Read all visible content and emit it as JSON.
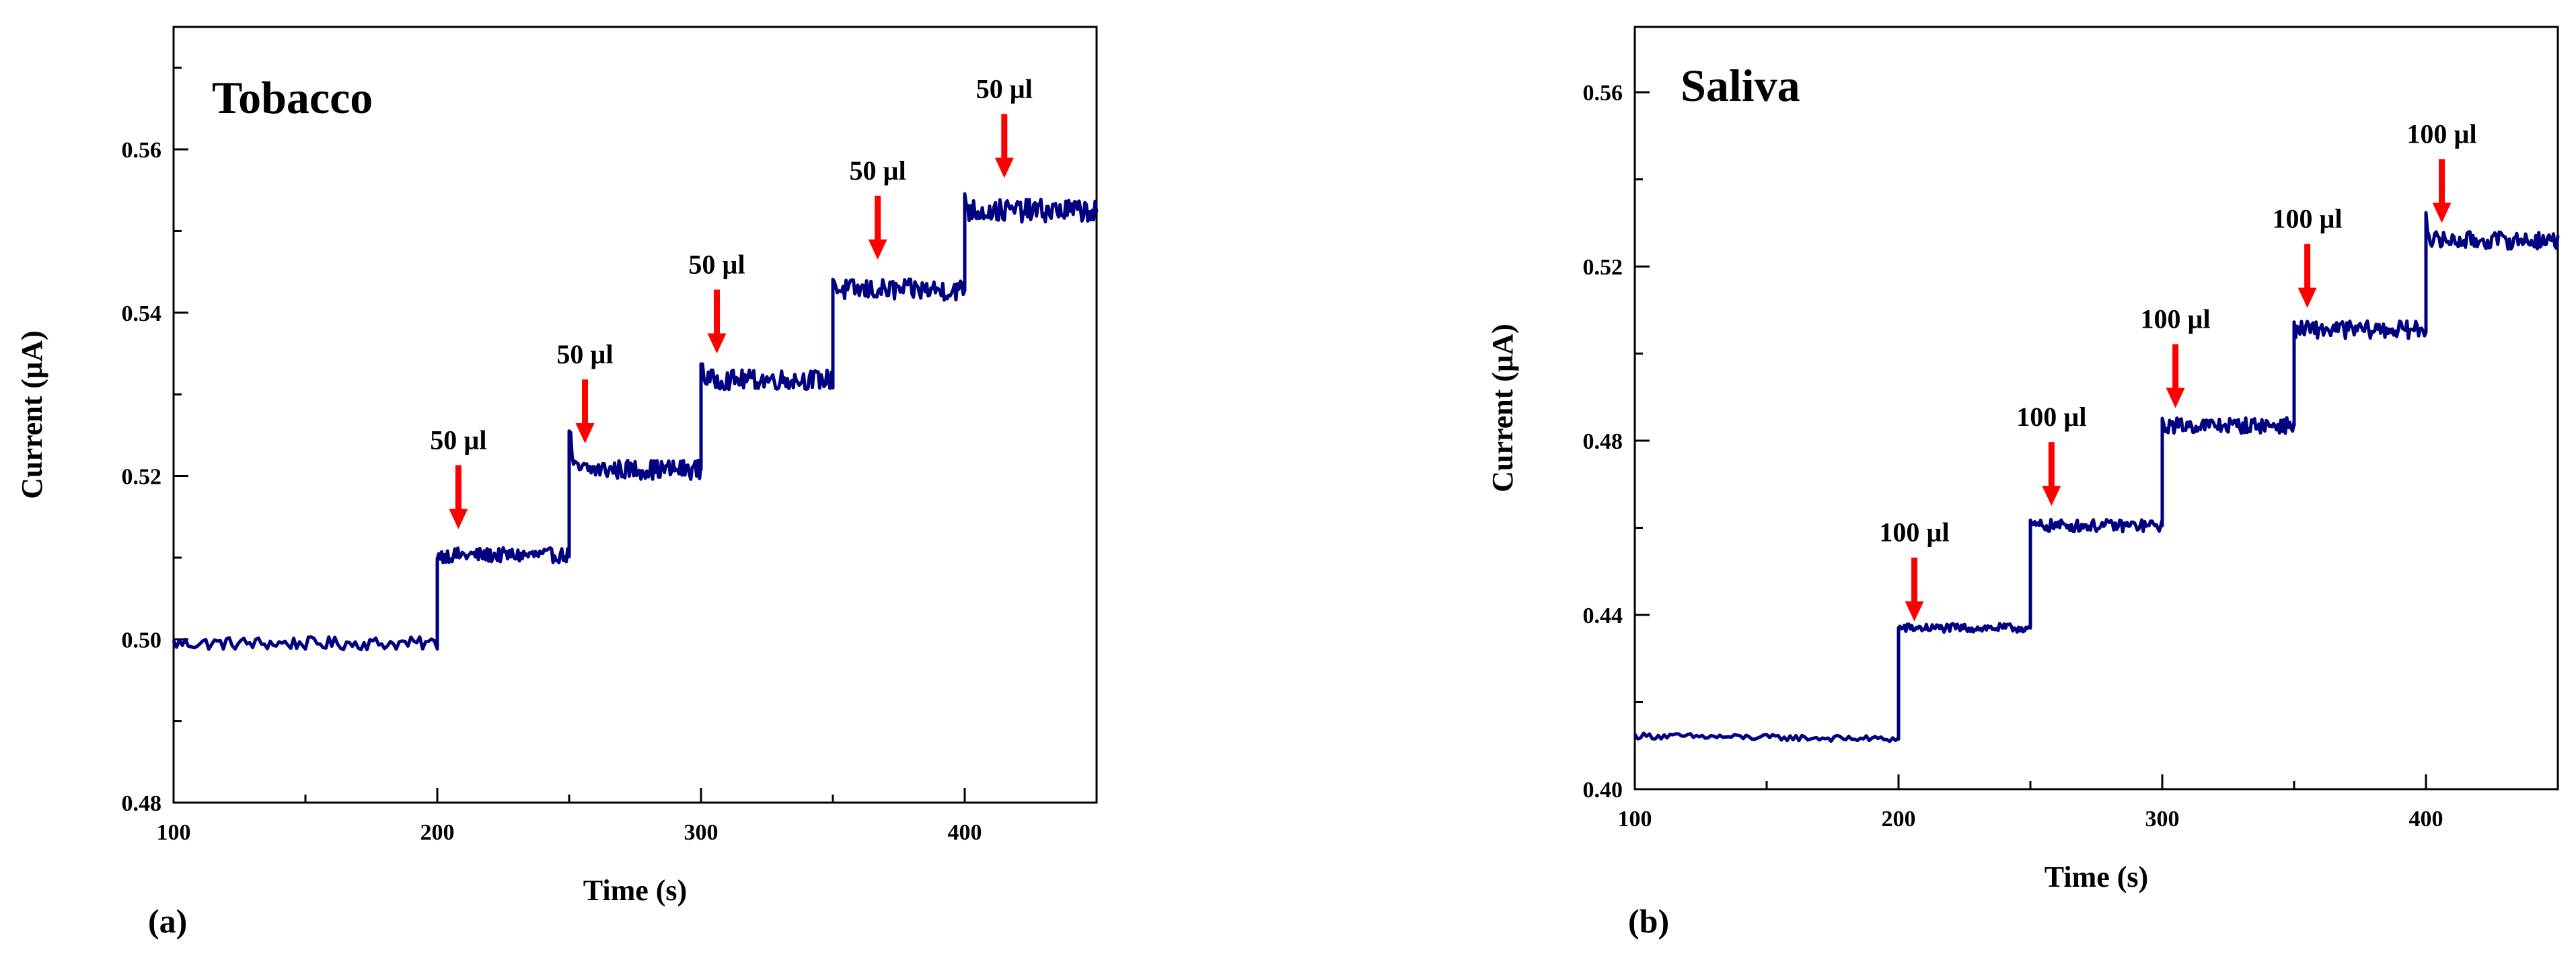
{
  "chart_data": [
    {
      "type": "line",
      "title": "Tobacco",
      "panel_label": "(a)",
      "xlabel": "Time (s)",
      "ylabel": "Current (µA)",
      "xlim": [
        100,
        450
      ],
      "ylim": [
        0.48,
        0.575
      ],
      "xticks": [
        100,
        200,
        300,
        400
      ],
      "xtick_labels": [
        "100",
        "200",
        "300",
        "400"
      ],
      "yticks": [
        0.48,
        0.5,
        0.52,
        0.54,
        0.56
      ],
      "ytick_labels": [
        "0.48",
        "0.50",
        "0.52",
        "0.54",
        "0.56"
      ],
      "series": [
        {
          "name": "Current",
          "color": "#000080",
          "steps": [
            {
              "start": 100,
              "end": 200,
              "level": 0.4995,
              "noise": 0.0008
            },
            {
              "start": 200,
              "end": 250,
              "level": 0.5103,
              "noise": 0.0009,
              "spike": 0.0
            },
            {
              "start": 250,
              "end": 300,
              "level": 0.5208,
              "noise": 0.0012,
              "spike": 0.0055
            },
            {
              "start": 300,
              "end": 350,
              "level": 0.5318,
              "noise": 0.0012,
              "spike": 0.0025
            },
            {
              "start": 350,
              "end": 400,
              "level": 0.5428,
              "noise": 0.0013,
              "spike": 0.0015
            },
            {
              "start": 400,
              "end": 450,
              "level": 0.5525,
              "noise": 0.0014,
              "spike": 0.002
            }
          ]
        }
      ],
      "annotations": [
        {
          "text": "50 µl",
          "x": 208,
          "y_tip": 0.5135,
          "arrow_color": "#ff0000"
        },
        {
          "text": "50 µl",
          "x": 256,
          "y_tip": 0.524,
          "arrow_color": "#ff0000"
        },
        {
          "text": "50 µl",
          "x": 306,
          "y_tip": 0.535,
          "arrow_color": "#ff0000"
        },
        {
          "text": "50 µl",
          "x": 367,
          "y_tip": 0.5465,
          "arrow_color": "#ff0000"
        },
        {
          "text": "50 µl",
          "x": 415,
          "y_tip": 0.5565,
          "arrow_color": "#ff0000"
        }
      ]
    },
    {
      "type": "line",
      "title": "Saliva",
      "panel_label": "(b)",
      "xlabel": "Time (s)",
      "ylabel": "Current (µA)",
      "xlim": [
        100,
        450
      ],
      "ylim": [
        0.4,
        0.575
      ],
      "xticks": [
        100,
        200,
        300,
        400
      ],
      "xtick_labels": [
        "100",
        "200",
        "300",
        "400"
      ],
      "yticks": [
        0.4,
        0.44,
        0.48,
        0.52,
        0.56
      ],
      "ytick_labels": [
        "0.40",
        "0.44",
        "0.48",
        "0.52",
        "0.56"
      ],
      "series": [
        {
          "name": "Current",
          "color": "#000080",
          "steps": [
            {
              "start": 100,
              "end": 200,
              "level": 0.4115,
              "noise": 0.0007,
              "drift": 0.0015
            },
            {
              "start": 200,
              "end": 250,
              "level": 0.437,
              "noise": 0.001
            },
            {
              "start": 250,
              "end": 300,
              "level": 0.4605,
              "noise": 0.0014
            },
            {
              "start": 300,
              "end": 350,
              "level": 0.4835,
              "noise": 0.0018
            },
            {
              "start": 350,
              "end": 400,
              "level": 0.5055,
              "noise": 0.002
            },
            {
              "start": 400,
              "end": 450,
              "level": 0.526,
              "noise": 0.002,
              "spike": 0.006
            }
          ]
        }
      ],
      "annotations": [
        {
          "text": "100 µl",
          "x": 206,
          "y_tip": 0.4385,
          "arrow_color": "#ff0000"
        },
        {
          "text": "100 µl",
          "x": 258,
          "y_tip": 0.465,
          "arrow_color": "#ff0000"
        },
        {
          "text": "100 µl",
          "x": 305,
          "y_tip": 0.4875,
          "arrow_color": "#ff0000"
        },
        {
          "text": "100 µl",
          "x": 355,
          "y_tip": 0.5105,
          "arrow_color": "#ff0000"
        },
        {
          "text": "100 µl",
          "x": 406,
          "y_tip": 0.53,
          "arrow_color": "#ff0000"
        }
      ]
    }
  ]
}
